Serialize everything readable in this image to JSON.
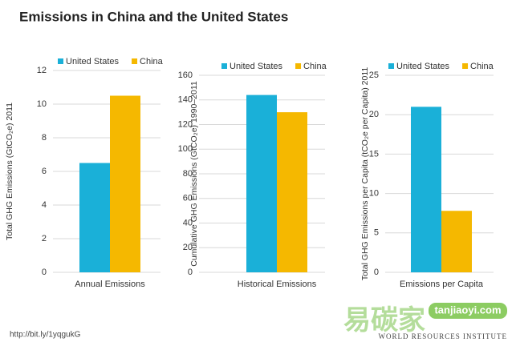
{
  "title": "Emissions in China and the United States",
  "source": "http://bit.ly/1yqgukG",
  "watermark": {
    "chinese": "易碳家",
    "site": "tanjiaoyi.com"
  },
  "footer_org": "WORLD RESOURCES INSTITUTE",
  "chart_data": [
    {
      "type": "bar",
      "ylabel": "Total GHG Emissions (GtCO₂e) 2011",
      "categories": [
        "Annual Emissions"
      ],
      "series": [
        {
          "name": "United States",
          "color": "#1ab0d8",
          "values": [
            6.5
          ]
        },
        {
          "name": "China",
          "color": "#f5b800",
          "values": [
            10.5
          ]
        }
      ],
      "ylim": [
        0,
        12
      ],
      "yticks": [
        0,
        2,
        4,
        6,
        8,
        10,
        12
      ],
      "grid": true
    },
    {
      "type": "bar",
      "ylabel": "Cumulative GHG Emissions (GtCO₂e) 1990–2011",
      "categories": [
        "Historical Emissions"
      ],
      "series": [
        {
          "name": "United States",
          "color": "#1ab0d8",
          "values": [
            144
          ]
        },
        {
          "name": "China",
          "color": "#f5b800",
          "values": [
            130
          ]
        }
      ],
      "ylim": [
        0,
        160
      ],
      "yticks": [
        0,
        20,
        40,
        60,
        80,
        100,
        120,
        140,
        160
      ],
      "grid": true
    },
    {
      "type": "bar",
      "ylabel": "Total GHG Emissions per Capita (tCO₂e per Capita) 2011",
      "categories": [
        "Emissions per Capita"
      ],
      "series": [
        {
          "name": "United States",
          "color": "#1ab0d8",
          "values": [
            21
          ]
        },
        {
          "name": "China",
          "color": "#f5b800",
          "values": [
            7.8
          ]
        }
      ],
      "ylim": [
        0,
        25
      ],
      "yticks": [
        0,
        5,
        10,
        15,
        20,
        25
      ],
      "grid": true
    }
  ]
}
